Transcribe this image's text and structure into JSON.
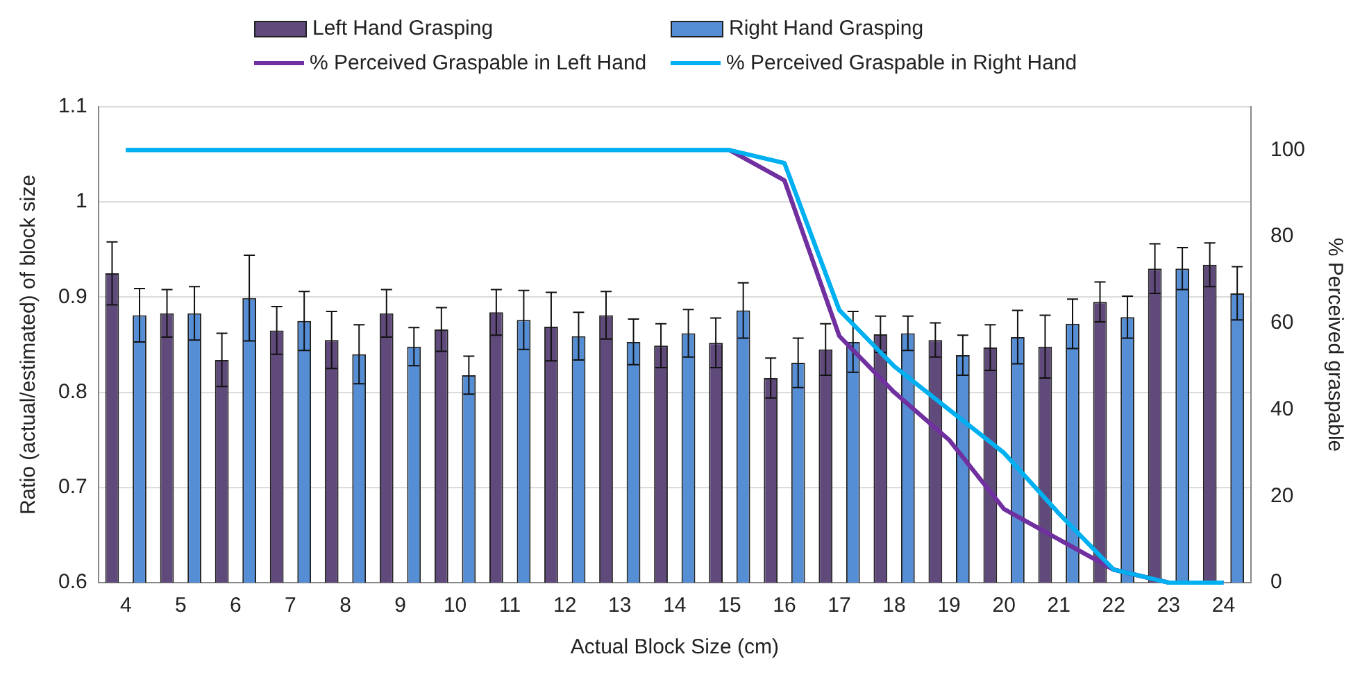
{
  "chart_data": {
    "type": "bar",
    "xlabel": "Actual Block Size (cm)",
    "ylabel": "Ratio (actual/estimated) of block size",
    "y2label": "% Perceived graspable",
    "categories": [
      "4",
      "5",
      "6",
      "7",
      "8",
      "9",
      "10",
      "11",
      "12",
      "13",
      "14",
      "15",
      "16",
      "17",
      "18",
      "19",
      "20",
      "21",
      "22",
      "23",
      "24"
    ],
    "series": [
      {
        "name": "Left Hand Grasping",
        "color": "#604a7b",
        "values": [
          0.925,
          0.883,
          0.834,
          0.865,
          0.855,
          0.883,
          0.866,
          0.884,
          0.869,
          0.881,
          0.849,
          0.852,
          0.815,
          0.845,
          0.861,
          0.855,
          0.847,
          0.848,
          0.895,
          0.93,
          0.934
        ],
        "errors": [
          0.033,
          0.025,
          0.028,
          0.025,
          0.03,
          0.025,
          0.023,
          0.024,
          0.036,
          0.025,
          0.023,
          0.026,
          0.021,
          0.027,
          0.019,
          0.018,
          0.024,
          0.033,
          0.021,
          0.026,
          0.023
        ]
      },
      {
        "name": "Right Hand Grasping",
        "color": "#558ed5",
        "values": [
          0.881,
          0.883,
          0.899,
          0.875,
          0.84,
          0.848,
          0.818,
          0.876,
          0.859,
          0.853,
          0.862,
          0.886,
          0.831,
          0.853,
          0.862,
          0.839,
          0.858,
          0.872,
          0.879,
          0.93,
          0.904
        ],
        "errors": [
          0.028,
          0.028,
          0.045,
          0.031,
          0.031,
          0.02,
          0.02,
          0.031,
          0.025,
          0.024,
          0.025,
          0.029,
          0.026,
          0.032,
          0.018,
          0.021,
          0.028,
          0.026,
          0.022,
          0.022,
          0.028
        ]
      },
      {
        "name": "% Perceived Graspable in Left Hand",
        "type": "line",
        "axis": "y2",
        "color": "#7030a0",
        "values": [
          null,
          null,
          null,
          null,
          null,
          null,
          null,
          null,
          null,
          null,
          null,
          100,
          93,
          57,
          44,
          33,
          17,
          10,
          3,
          0,
          0
        ]
      },
      {
        "name": "% Perceived Graspable in Right Hand",
        "type": "line",
        "axis": "y2",
        "color": "#00b0f0",
        "values": [
          100,
          100,
          100,
          100,
          100,
          100,
          100,
          100,
          100,
          100,
          100,
          100,
          97,
          63,
          50,
          40,
          30,
          16,
          3,
          0,
          0
        ]
      }
    ],
    "ylim": [
      0.6,
      1.1
    ],
    "yticks": [
      0.6,
      0.7,
      0.8,
      0.9,
      1,
      1.1
    ],
    "y2lim": [
      0,
      110
    ],
    "y2ticks": [
      0,
      20,
      40,
      60,
      80,
      100
    ],
    "grid": "y",
    "legend": "top",
    "marker": "none"
  }
}
